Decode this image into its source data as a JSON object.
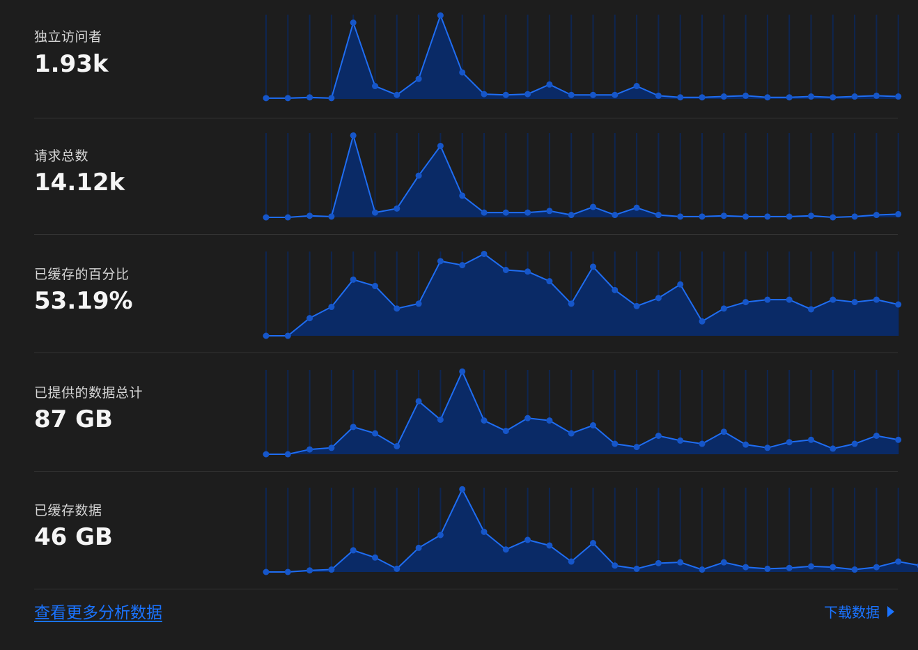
{
  "colors": {
    "background": "#1d1d1d",
    "line": "#1f6df2",
    "fill": "#0a2a66",
    "point": "#1656c9",
    "gridline": "#0e2550",
    "link": "#1a73ff"
  },
  "metrics": [
    {
      "label": "独立访问者",
      "value": "1.93k",
      "chart_data": {
        "type": "area",
        "values": [
          1,
          1,
          2,
          1,
          95,
          16,
          5,
          25,
          104,
          33,
          6,
          5,
          6,
          18,
          5,
          5,
          5,
          16,
          4,
          2,
          2,
          3,
          4,
          2,
          2,
          3,
          2,
          3,
          4,
          3
        ],
        "ylim": [
          0,
          105
        ]
      }
    },
    {
      "label": "请求总数",
      "value": "14.12k",
      "chart_data": {
        "type": "area",
        "values": [
          0,
          0,
          2,
          1,
          102,
          6,
          11,
          52,
          89,
          27,
          6,
          6,
          6,
          8,
          3,
          13,
          3,
          12,
          3,
          1,
          1,
          2,
          1,
          1,
          1,
          2,
          0,
          1,
          3,
          4
        ],
        "ylim": [
          0,
          105
        ]
      }
    },
    {
      "label": "已缓存的百分比",
      "value": "53.19%",
      "chart_data": {
        "type": "area",
        "values": [
          0,
          0,
          22,
          36,
          70,
          62,
          34,
          40,
          93,
          88,
          102,
          82,
          80,
          68,
          40,
          86,
          57,
          37,
          47,
          64,
          18,
          34,
          42,
          45,
          45,
          33,
          45,
          42,
          45,
          39
        ],
        "ylim": [
          0,
          105
        ]
      }
    },
    {
      "label": "已提供的数据总计",
      "value": "87 GB",
      "chart_data": {
        "type": "area",
        "values": [
          0,
          0,
          6,
          8,
          34,
          26,
          10,
          66,
          43,
          103,
          42,
          29,
          45,
          42,
          26,
          36,
          13,
          9,
          23,
          17,
          13,
          28,
          12,
          8,
          15,
          18,
          7,
          13,
          23,
          18
        ],
        "ylim": [
          0,
          105
        ]
      }
    },
    {
      "label": "已缓存数据",
      "value": "46 GB",
      "chart_data": {
        "type": "area",
        "values": [
          0,
          0,
          2,
          3,
          27,
          18,
          4,
          30,
          46,
          103,
          50,
          28,
          40,
          33,
          13,
          36,
          8,
          4,
          11,
          12,
          3,
          12,
          6,
          4,
          5,
          7,
          6,
          3,
          6,
          13,
          8
        ],
        "ylim": [
          0,
          105
        ]
      }
    }
  ],
  "footer": {
    "analytics_link": "查看更多分析数据",
    "download_link": "下载数据"
  }
}
